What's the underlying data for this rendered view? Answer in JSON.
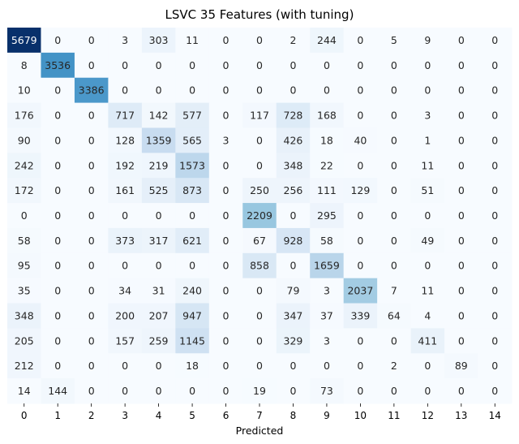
{
  "chart_data": {
    "type": "heatmap",
    "title": "LSVC 35 Features (with tuning)",
    "xlabel": "Predicted",
    "ylabel": "",
    "colormap": "Blues",
    "colorbar": false,
    "x_tick_labels": [
      "0",
      "1",
      "2",
      "3",
      "4",
      "5",
      "6",
      "7",
      "8",
      "9",
      "10",
      "11",
      "12",
      "13",
      "14"
    ],
    "y_tick_labels": [],
    "matrix": [
      [
        5679,
        0,
        0,
        3,
        303,
        11,
        0,
        0,
        2,
        244,
        0,
        5,
        9,
        0,
        0
      ],
      [
        8,
        3536,
        0,
        0,
        0,
        0,
        0,
        0,
        0,
        0,
        0,
        0,
        0,
        0,
        0
      ],
      [
        10,
        0,
        3386,
        0,
        0,
        0,
        0,
        0,
        0,
        0,
        0,
        0,
        0,
        0,
        0
      ],
      [
        176,
        0,
        0,
        717,
        142,
        577,
        0,
        117,
        728,
        168,
        0,
        0,
        3,
        0,
        0
      ],
      [
        90,
        0,
        0,
        128,
        1359,
        565,
        3,
        0,
        426,
        18,
        40,
        0,
        1,
        0,
        0
      ],
      [
        242,
        0,
        0,
        192,
        219,
        1573,
        0,
        0,
        348,
        22,
        0,
        0,
        11,
        0,
        0
      ],
      [
        172,
        0,
        0,
        161,
        525,
        873,
        0,
        250,
        256,
        111,
        129,
        0,
        51,
        0,
        0
      ],
      [
        0,
        0,
        0,
        0,
        0,
        0,
        0,
        2209,
        0,
        295,
        0,
        0,
        0,
        0,
        0
      ],
      [
        58,
        0,
        0,
        373,
        317,
        621,
        0,
        67,
        928,
        58,
        0,
        0,
        49,
        0,
        0
      ],
      [
        95,
        0,
        0,
        0,
        0,
        0,
        0,
        858,
        0,
        1659,
        0,
        0,
        0,
        0,
        0
      ],
      [
        35,
        0,
        0,
        34,
        31,
        240,
        0,
        0,
        79,
        3,
        2037,
        7,
        11,
        0,
        0
      ],
      [
        348,
        0,
        0,
        200,
        207,
        947,
        0,
        0,
        347,
        37,
        339,
        64,
        4,
        0,
        0
      ],
      [
        205,
        0,
        0,
        157,
        259,
        1145,
        0,
        0,
        329,
        3,
        0,
        0,
        411,
        0,
        0
      ],
      [
        212,
        0,
        0,
        0,
        0,
        18,
        0,
        0,
        0,
        0,
        0,
        2,
        0,
        89,
        0
      ],
      [
        14,
        144,
        0,
        0,
        0,
        0,
        0,
        19,
        0,
        73,
        0,
        0,
        0,
        0,
        0
      ]
    ],
    "value_range": [
      0,
      5679
    ]
  }
}
